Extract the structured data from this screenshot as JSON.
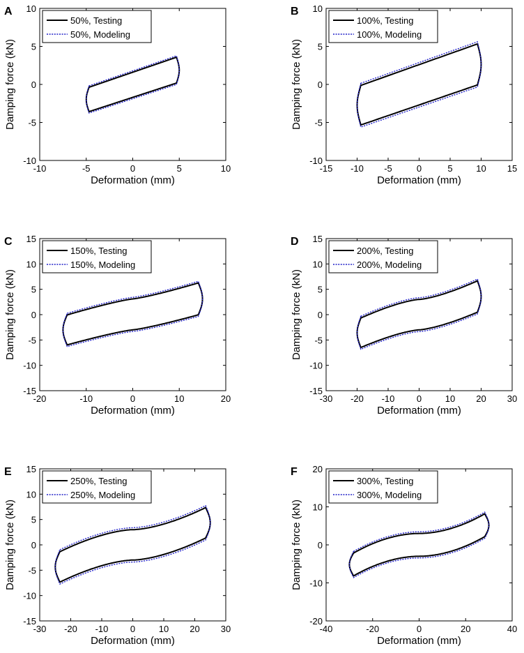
{
  "figure": {
    "chart_data": [
      {
        "panel": "A",
        "type": "line",
        "xlabel": "Deformation (mm)",
        "ylabel": "Damping force (kN)",
        "xlim": [
          -10,
          10
        ],
        "ylim": [
          -10,
          10
        ],
        "xticks": [
          "-10",
          "-5",
          "0",
          "5",
          "10"
        ],
        "yticks": [
          "-10",
          "-5",
          "0",
          "5",
          "10"
        ],
        "amplitude": 5,
        "force_max": 3.7,
        "force_min": -3.7,
        "force_at_zero_upper": 1.6,
        "force_at_zero_lower": -1.7,
        "shape_exponent": 1,
        "series": [
          {
            "name": "50%, Testing",
            "color": "#000000",
            "style": "solid"
          },
          {
            "name": "50%, Modeling",
            "color": "#2020c8",
            "style": "dotted"
          }
        ]
      },
      {
        "panel": "B",
        "type": "line",
        "xlabel": "Deformation (mm)",
        "ylabel": "Damping force (kN)",
        "xlim": [
          -15,
          15
        ],
        "ylim": [
          -10,
          10
        ],
        "xticks": [
          "-15",
          "-10",
          "-5",
          "0",
          "5",
          "10",
          "15"
        ],
        "yticks": [
          "-10",
          "-5",
          "0",
          "5",
          "10"
        ],
        "amplitude": 10,
        "force_max": 5.5,
        "force_min": -5.5,
        "force_at_zero_upper": 2.6,
        "force_at_zero_lower": -2.7,
        "shape_exponent": 1,
        "series": [
          {
            "name": "100%, Testing",
            "color": "#000000",
            "style": "solid"
          },
          {
            "name": "100%, Modeling",
            "color": "#2020c8",
            "style": "dotted"
          }
        ]
      },
      {
        "panel": "C",
        "type": "line",
        "xlabel": "Deformation (mm)",
        "ylabel": "Damping force (kN)",
        "xlim": [
          -20,
          20
        ],
        "ylim": [
          -15,
          15
        ],
        "xticks": [
          "-20",
          "-10",
          "0",
          "10",
          "20"
        ],
        "yticks": [
          "-15",
          "-10",
          "-5",
          "0",
          "5",
          "10",
          "15"
        ],
        "amplitude": 15,
        "force_max": 6.5,
        "force_min": -6.2,
        "force_at_zero_upper": 3.1,
        "force_at_zero_lower": -3.0,
        "shape_exponent": 1.2,
        "series": [
          {
            "name": "150%, Testing",
            "color": "#000000",
            "style": "solid"
          },
          {
            "name": "150%, Modeling",
            "color": "#2020c8",
            "style": "dotted"
          }
        ]
      },
      {
        "panel": "D",
        "type": "line",
        "xlabel": "Deformation (mm)",
        "ylabel": "Damping force (kN)",
        "xlim": [
          -30,
          30
        ],
        "ylim": [
          -15,
          15
        ],
        "xticks": [
          "-30",
          "-20",
          "-10",
          "0",
          "10",
          "20",
          "30"
        ],
        "yticks": [
          "-15",
          "-10",
          "-5",
          "0",
          "5",
          "10",
          "15"
        ],
        "amplitude": 20,
        "force_max": 7.0,
        "force_min": -6.8,
        "force_at_zero_upper": 3.0,
        "force_at_zero_lower": -3.0,
        "shape_exponent": 1.4,
        "series": [
          {
            "name": "200%, Testing",
            "color": "#000000",
            "style": "solid"
          },
          {
            "name": "200%, Modeling",
            "color": "#2020c8",
            "style": "dotted"
          }
        ]
      },
      {
        "panel": "E",
        "type": "line",
        "xlabel": "Deformation (mm)",
        "ylabel": "Damping force (kN)",
        "xlim": [
          -30,
          30
        ],
        "ylim": [
          -15,
          15
        ],
        "xticks": [
          "-30",
          "-20",
          "-10",
          "0",
          "10",
          "20",
          "30"
        ],
        "yticks": [
          "-15",
          "-10",
          "-5",
          "0",
          "5",
          "10",
          "15"
        ],
        "amplitude": 25,
        "force_max": 7.8,
        "force_min": -7.8,
        "force_at_zero_upper": 3.0,
        "force_at_zero_lower": -3.0,
        "shape_exponent": 1.6,
        "series": [
          {
            "name": "250%, Testing",
            "color": "#000000",
            "style": "solid"
          },
          {
            "name": "250%, Modeling",
            "color": "#2020c8",
            "style": "dotted"
          }
        ]
      },
      {
        "panel": "F",
        "type": "line",
        "xlabel": "Deformation (mm)",
        "ylabel": "Damping force (kN)",
        "xlim": [
          -40,
          40
        ],
        "ylim": [
          -20,
          20
        ],
        "xticks": [
          "-40",
          "-20",
          "0",
          "20",
          "40"
        ],
        "yticks": [
          "-20",
          "-10",
          "0",
          "10",
          "20"
        ],
        "amplitude": 30,
        "force_max": 8.8,
        "force_min": -8.8,
        "force_at_zero_upper": 3.0,
        "force_at_zero_lower": -3.0,
        "shape_exponent": 1.9,
        "series": [
          {
            "name": "300%, Testing",
            "color": "#000000",
            "style": "solid"
          },
          {
            "name": "300%, Modeling",
            "color": "#2020c8",
            "style": "dotted"
          }
        ]
      }
    ]
  }
}
